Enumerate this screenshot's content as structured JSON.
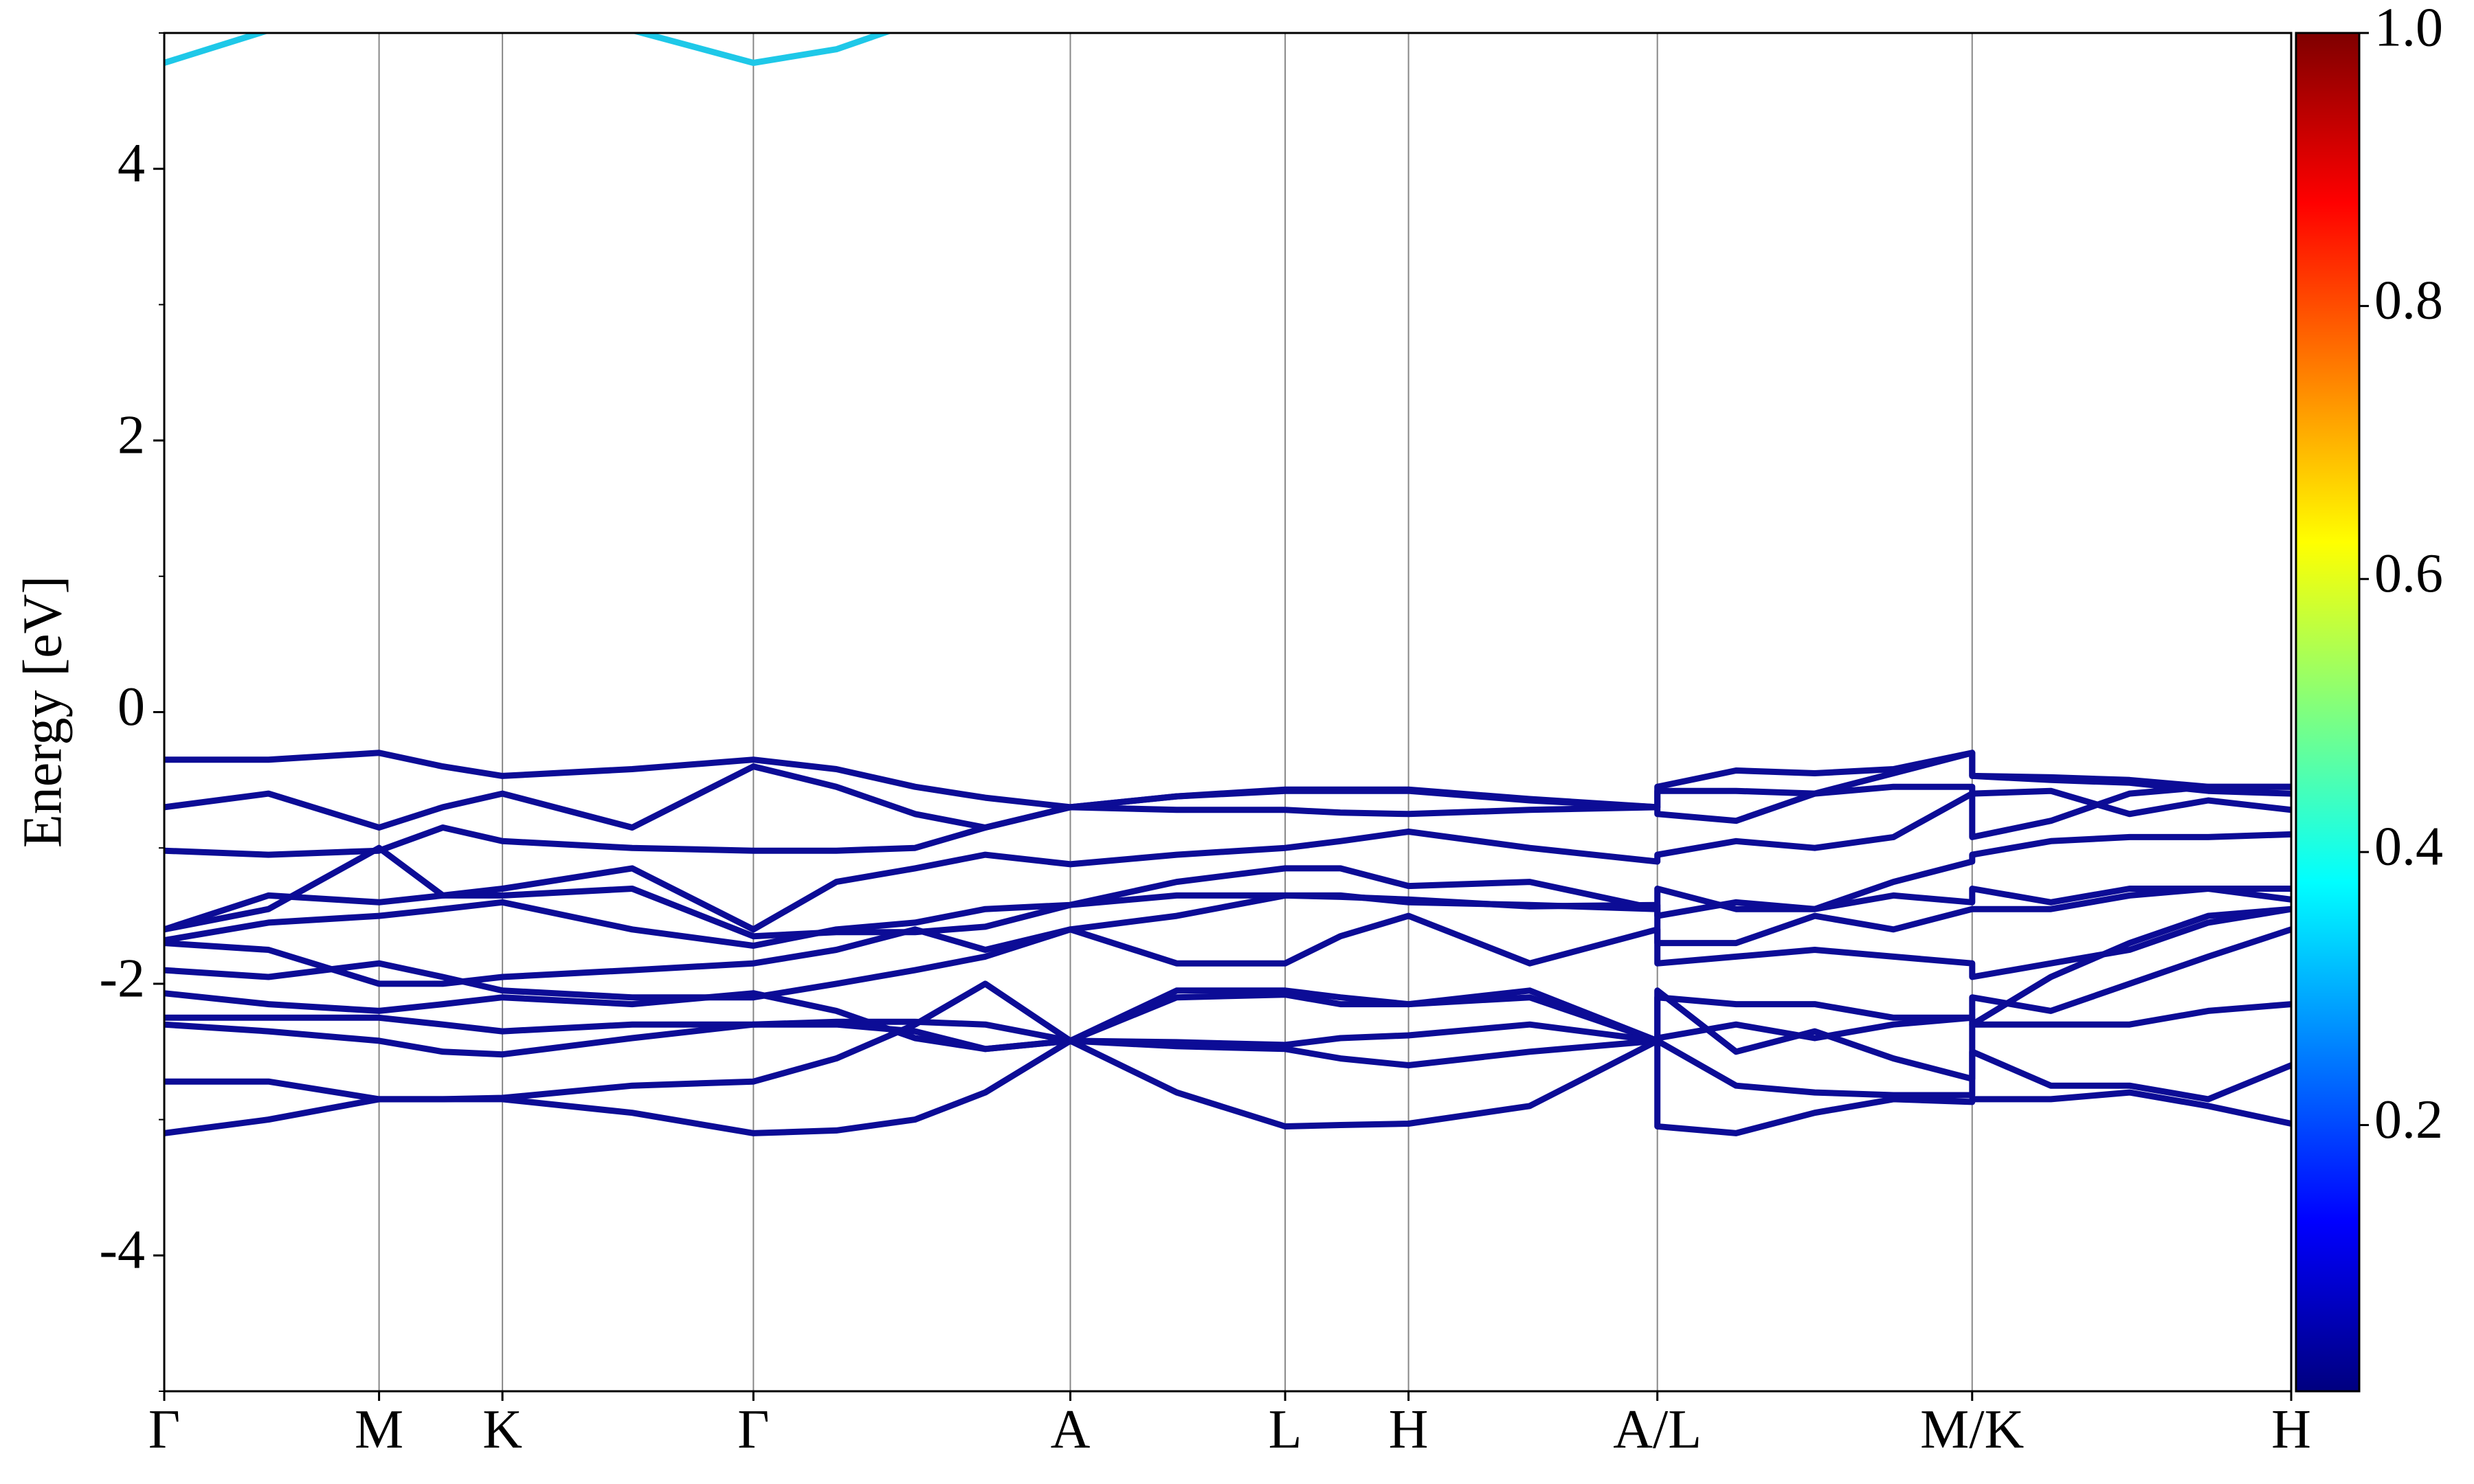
{
  "chart_data": {
    "type": "line",
    "ylabel": "Energy [eV]",
    "x": [
      0,
      0.049,
      0.101,
      0.131,
      0.159,
      0.22,
      0.277,
      0.316,
      0.353,
      0.386,
      0.426,
      0.476,
      0.527,
      0.553,
      0.585,
      0.642,
      0.702,
      0.702,
      0.739,
      0.776,
      0.813,
      0.85,
      0.85,
      0.887,
      0.924,
      0.961,
      1
    ],
    "xlim": [
      0,
      1
    ],
    "xticks": [
      {
        "value": 0,
        "label": "Γ"
      },
      {
        "value": 0.101,
        "label": "M"
      },
      {
        "value": 0.159,
        "label": "K"
      },
      {
        "value": 0.277,
        "label": "Γ"
      },
      {
        "value": 0.426,
        "label": "A"
      },
      {
        "value": 0.527,
        "label": "L"
      },
      {
        "value": 0.585,
        "label": "H"
      },
      {
        "value": 0.702,
        "label": "A/L"
      },
      {
        "value": 0.85,
        "label": "M/K"
      },
      {
        "value": 1,
        "label": "H"
      }
    ],
    "ylim": [
      -5,
      5
    ],
    "yticks": [
      -4,
      -2,
      0,
      2,
      4
    ],
    "yminorticks": [
      -5,
      -3,
      -1,
      1,
      3,
      5
    ],
    "xgrid": true,
    "series": [
      {
        "color": "#0c0c96",
        "values": [
          -3.1,
          -3.0,
          -2.85,
          -2.85,
          -2.85,
          -2.95,
          -3.1,
          -3.08,
          -3.0,
          -2.8,
          -2.42,
          -2.8,
          -3.05,
          -3.04,
          -3.03,
          -2.9,
          -2.42,
          -3.05,
          -3.1,
          -2.95,
          -2.85,
          -2.87,
          -2.85,
          -2.85,
          -2.8,
          -2.9,
          -3.03
        ]
      },
      {
        "color": "#0c0c96",
        "values": [
          -2.72,
          -2.72,
          -2.85,
          -2.85,
          -2.84,
          -2.75,
          -2.72,
          -2.55,
          -2.3,
          -2.0,
          -2.42,
          -2.05,
          -2.05,
          -2.1,
          -2.15,
          -2.1,
          -2.42,
          -2.42,
          -2.75,
          -2.8,
          -2.82,
          -2.82,
          -2.5,
          -2.75,
          -2.75,
          -2.85,
          -2.6
        ]
      },
      {
        "color": "#0c0c96",
        "values": [
          -2.3,
          -2.35,
          -2.42,
          -2.5,
          -2.52,
          -2.4,
          -2.3,
          -2.3,
          -2.35,
          -2.48,
          -2.42,
          -2.46,
          -2.48,
          -2.55,
          -2.6,
          -2.5,
          -2.42,
          -2.05,
          -2.5,
          -2.35,
          -2.55,
          -2.7,
          -2.3,
          -2.3,
          -2.3,
          -2.2,
          -2.15
        ]
      },
      {
        "color": "#0c0c96",
        "values": [
          -2.25,
          -2.25,
          -2.25,
          -2.3,
          -2.35,
          -2.3,
          -2.3,
          -2.28,
          -2.28,
          -2.3,
          -2.42,
          -2.43,
          -2.45,
          -2.4,
          -2.38,
          -2.3,
          -2.42,
          -2.4,
          -2.3,
          -2.4,
          -2.3,
          -2.25,
          -2.1,
          -2.2,
          -2.0,
          -1.8,
          -1.6
        ]
      },
      {
        "color": "#0c0c96",
        "values": [
          -2.07,
          -2.15,
          -2.2,
          -2.15,
          -2.1,
          -2.15,
          -2.07,
          -2.2,
          -2.4,
          -2.48,
          -2.42,
          -2.1,
          -2.08,
          -2.15,
          -2.15,
          -2.05,
          -2.42,
          -2.1,
          -2.15,
          -2.15,
          -2.25,
          -2.25,
          -2.3,
          -1.95,
          -1.7,
          -1.5,
          -1.45
        ]
      },
      {
        "color": "#0c0c96",
        "values": [
          -1.9,
          -1.95,
          -1.85,
          -1.95,
          -2.05,
          -2.1,
          -2.1,
          -2.0,
          -1.9,
          -1.8,
          -1.6,
          -1.85,
          -1.85,
          -1.65,
          -1.5,
          -1.85,
          -1.6,
          -1.85,
          -1.8,
          -1.75,
          -1.8,
          -1.85,
          -1.95,
          -1.85,
          -1.75,
          -1.55,
          -1.45
        ]
      },
      {
        "color": "#0c0c96",
        "values": [
          -1.7,
          -1.75,
          -2.0,
          -2.0,
          -1.95,
          -1.9,
          -1.85,
          -1.75,
          -1.6,
          -1.75,
          -1.6,
          -1.5,
          -1.35,
          -1.35,
          -1.4,
          -1.42,
          -1.45,
          -1.7,
          -1.7,
          -1.5,
          -1.6,
          -1.45,
          -1.45,
          -1.45,
          -1.35,
          -1.3,
          -1.38
        ]
      },
      {
        "color": "#0c0c96",
        "values": [
          -1.68,
          -1.55,
          -1.5,
          -1.45,
          -1.4,
          -1.6,
          -1.72,
          -1.6,
          -1.55,
          -1.45,
          -1.42,
          -1.35,
          -1.35,
          -1.36,
          -1.38,
          -1.43,
          -1.42,
          -1.5,
          -1.4,
          -1.45,
          -1.35,
          -1.4,
          -1.3,
          -1.4,
          -1.3,
          -1.3,
          -1.3
        ]
      },
      {
        "color": "#0c0c96",
        "values": [
          -1.6,
          -1.35,
          -1.4,
          -1.35,
          -1.35,
          -1.3,
          -1.65,
          -1.62,
          -1.62,
          -1.58,
          -1.42,
          -1.25,
          -1.15,
          -1.15,
          -1.28,
          -1.25,
          -1.45,
          -1.3,
          -1.45,
          -1.45,
          -1.25,
          -1.1,
          -1.05,
          -0.95,
          -0.92,
          -0.92,
          -0.9
        ]
      },
      {
        "color": "#0c0c96",
        "values": [
          -1.6,
          -1.45,
          -1.0,
          -1.35,
          -1.3,
          -1.15,
          -1.6,
          -1.25,
          -1.15,
          -1.05,
          -1.12,
          -1.05,
          -1.0,
          -0.95,
          -0.88,
          -1.0,
          -1.1,
          -1.05,
          -0.95,
          -1.0,
          -0.92,
          -0.6,
          -0.6,
          -0.58,
          -0.75,
          -0.65,
          -0.72
        ]
      },
      {
        "color": "#0c0c96",
        "values": [
          -1.02,
          -1.05,
          -1.02,
          -0.85,
          -0.95,
          -1.0,
          -1.02,
          -1.02,
          -1.0,
          -0.85,
          -0.7,
          -0.72,
          -0.72,
          -0.74,
          -0.75,
          -0.72,
          -0.7,
          -0.75,
          -0.8,
          -0.6,
          -0.55,
          -0.55,
          -0.92,
          -0.8,
          -0.6,
          -0.55,
          -0.55
        ]
      },
      {
        "color": "#0c0c96",
        "values": [
          -0.7,
          -0.6,
          -0.85,
          -0.7,
          -0.6,
          -0.85,
          -0.4,
          -0.55,
          -0.75,
          -0.85,
          -0.7,
          -0.62,
          -0.58,
          -0.58,
          -0.58,
          -0.65,
          -0.7,
          -0.58,
          -0.58,
          -0.6,
          -0.45,
          -0.3,
          -0.47,
          -0.5,
          -0.52,
          -0.58,
          -0.6
        ]
      },
      {
        "color": "#0c0c96",
        "values": [
          -0.35,
          -0.35,
          -0.3,
          -0.4,
          -0.47,
          -0.42,
          -0.35,
          -0.42,
          -0.55,
          -0.63,
          -0.7,
          -0.62,
          -0.57,
          -0.57,
          -0.57,
          -0.64,
          -0.7,
          -0.55,
          -0.43,
          -0.45,
          -0.42,
          -0.3,
          -0.47,
          -0.48,
          -0.5,
          -0.55,
          -0.55
        ]
      },
      {
        "color": "#1ec8e8",
        "values": [
          4.78,
          5.02,
          null,
          null,
          null,
          5.02,
          4.78,
          4.88,
          5.08,
          null,
          null,
          null,
          null,
          null,
          null,
          null,
          null,
          null,
          null,
          null,
          null,
          null,
          null,
          null,
          null,
          null,
          null
        ]
      }
    ],
    "colorbar": {
      "lim": [
        0.005,
        1
      ],
      "ticks": [
        0.2,
        0.4,
        0.6,
        0.8,
        {
          "value": 1,
          "label": "1.0"
        }
      ],
      "colors": [
        "#00007f",
        "#0000ff",
        "#007fff",
        "#00ffff",
        "#7fff7f",
        "#ffff00",
        "#ff7f00",
        "#ff0000",
        "#7f0000"
      ]
    }
  }
}
